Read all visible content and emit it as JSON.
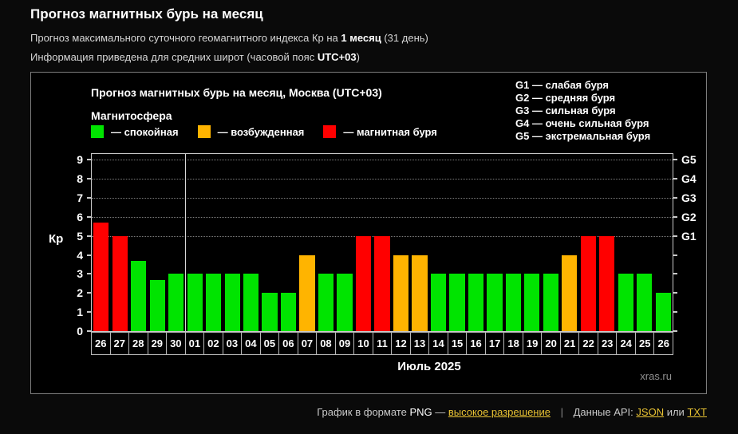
{
  "header": {
    "title": "Прогноз магнитных бурь на месяц",
    "line1": {
      "pre": "Прогноз максимального суточного геомагнитного индекса Кр на ",
      "bold": "1 месяц",
      "post": " (31 день)"
    },
    "line2": {
      "pre": "Информация приведена для средних широт (часовой пояс ",
      "bold": "UTC+03",
      "post": ")"
    }
  },
  "chart_data": {
    "type": "bar",
    "title": "Прогноз магнитных бурь на месяц, Москва (UTC+03)",
    "legend_title": "Магнитосфера",
    "legend": [
      {
        "label": "— спокойная",
        "status": "calm",
        "color": "#00e400"
      },
      {
        "label": "— возбужденная",
        "status": "excited",
        "color": "#ffb400"
      },
      {
        "label": "— магнитная буря",
        "status": "storm",
        "color": "#ff0000"
      }
    ],
    "g_legend": [
      "G1 — слабая буря",
      "G2 — средняя буря",
      "G3 — сильная буря",
      "G4 — очень сильная буря",
      "G5 — экстремальная буря"
    ],
    "ylabel": "Кр",
    "xlabel": "Июль 2025",
    "watermark": "xras.ru",
    "ylim": [
      0,
      9
    ],
    "ylim_display_max": 9.3,
    "left_ticks": [
      0,
      1,
      2,
      3,
      4,
      5,
      6,
      7,
      8,
      9
    ],
    "grid_values": [
      5,
      6,
      7,
      8,
      9
    ],
    "right_labels": [
      {
        "value": 5,
        "label": "G1"
      },
      {
        "value": 6,
        "label": "G2"
      },
      {
        "value": 7,
        "label": "G3"
      },
      {
        "value": 8,
        "label": "G4"
      },
      {
        "value": 9,
        "label": "G5"
      }
    ],
    "month_separator_after_index": 4,
    "categories": [
      "26",
      "27",
      "28",
      "29",
      "30",
      "01",
      "02",
      "03",
      "04",
      "05",
      "06",
      "07",
      "08",
      "09",
      "10",
      "11",
      "12",
      "13",
      "14",
      "15",
      "16",
      "17",
      "18",
      "19",
      "20",
      "21",
      "22",
      "23",
      "24",
      "25",
      "26"
    ],
    "values": [
      5.7,
      5,
      3.7,
      2.7,
      3,
      3,
      3,
      3,
      3,
      2,
      2,
      4,
      3,
      3,
      5,
      5,
      4,
      4,
      3,
      3,
      3,
      3,
      3,
      3,
      3,
      4,
      5,
      5,
      3,
      3,
      2
    ],
    "statuses": [
      "storm",
      "storm",
      "calm",
      "calm",
      "calm",
      "calm",
      "calm",
      "calm",
      "calm",
      "calm",
      "calm",
      "excited",
      "calm",
      "calm",
      "storm",
      "storm",
      "excited",
      "excited",
      "calm",
      "calm",
      "calm",
      "calm",
      "calm",
      "calm",
      "calm",
      "excited",
      "storm",
      "storm",
      "calm",
      "calm",
      "calm"
    ],
    "colors": {
      "calm": "#00e400",
      "excited": "#ffb400",
      "storm": "#ff0000"
    },
    "grid": "dashed horizontal at G-levels only",
    "legend_position": "top"
  },
  "footer": {
    "text_format": "График в формате",
    "png": "PNG",
    "dash": "—",
    "hires_link": "высокое разрешение",
    "separator": "|",
    "api_text": "Данные API:",
    "json_link": "JSON",
    "or_text": "или",
    "txt_link": "TXT"
  }
}
